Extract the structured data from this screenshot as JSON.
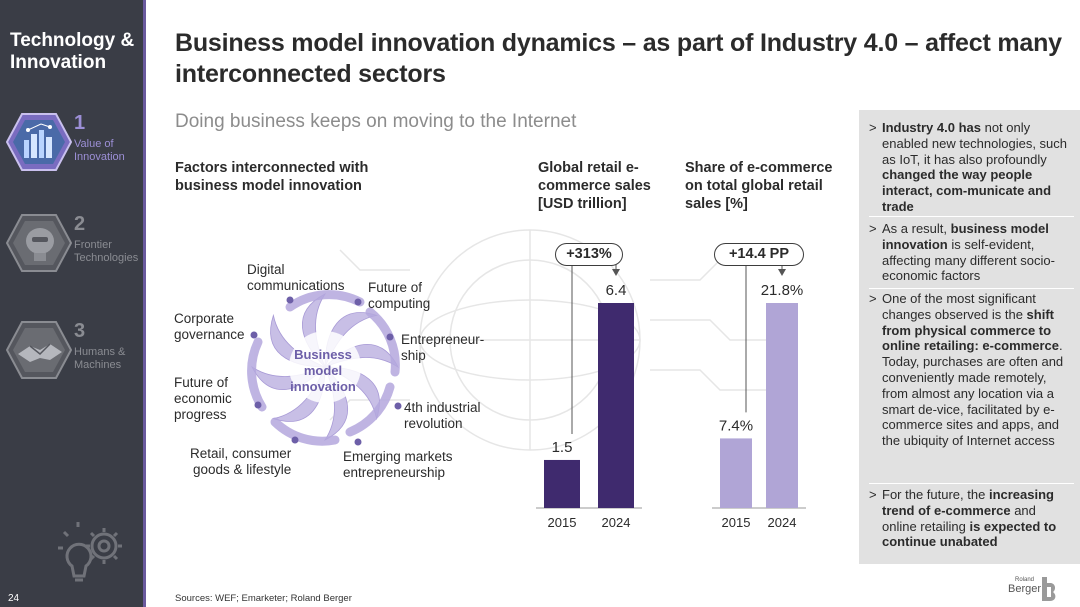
{
  "sidebar": {
    "title": "Technology & Innovation",
    "items": [
      {
        "num": "1",
        "label_line1": "Value of",
        "label_line2": "Innovation",
        "icon": "city-network-icon"
      },
      {
        "num": "2",
        "label_line1": "Frontier",
        "label_line2": "Technologies",
        "icon": "robot-head-icon"
      },
      {
        "num": "3",
        "label_line1": "Humans &",
        "label_line2": "Machines",
        "icon": "handshake-icon"
      }
    ],
    "footer_icon": "lightbulb-gear-icon",
    "page_number": "24"
  },
  "header": {
    "title": "Business model innovation dynamics – as part of Industry 4.0 – affect many interconnected sectors",
    "subtitle": "Doing business keeps on moving to the Internet"
  },
  "factors": {
    "heading": "Factors interconnected with business model innovation",
    "center_line1": "Business",
    "center_line2": "model",
    "center_line3": "innovation",
    "items": [
      "Digital\ncommunications",
      "Future of\ncomputing",
      "Entrepreneur-\nship",
      "4th industrial\nrevolution",
      "Emerging markets\nentrepreneurship",
      "Retail, consumer\ngoods & lifestyle",
      "Future of\neconomic\nprogress",
      "Corporate\ngovernance"
    ]
  },
  "sales_chart": {
    "heading_line1": "Global retail e-",
    "heading_line2": "commerce sales",
    "heading_line3": "[USD trillion]",
    "change": "+313%",
    "bar_labels": [
      "1.5",
      "6.4"
    ]
  },
  "share_chart": {
    "heading_line1": "Share of e-commerce",
    "heading_line2": "on total global retail",
    "heading_line3": "sales [%]",
    "change": "+14.4 PP",
    "bar_labels": [
      "7.4%",
      "21.8%"
    ]
  },
  "chart_data": [
    {
      "type": "bar",
      "categories": [
        "2015",
        "2024"
      ],
      "values": [
        1.5,
        6.4
      ],
      "title": "Global retail e-commerce sales [USD trillion]",
      "colors": [
        "#3f2a6e",
        "#3f2a6e"
      ],
      "annotation": "+313%"
    },
    {
      "type": "bar",
      "categories": [
        "2015",
        "2024"
      ],
      "values": [
        7.4,
        21.8
      ],
      "title": "Share of e-commerce on total global retail sales [%]",
      "colors": [
        "#b0a5d6",
        "#b0a5d6"
      ],
      "annotation": "+14.4 PP"
    }
  ],
  "panel": {
    "bullets": [
      "<b>Industry 4.0 has</b> not only enabled new technologies, such as IoT, it has also profoundly <b>changed the way people interact, com-municate and trade</b>",
      "As a result, <b>business model innovation</b> is self-evident, affecting many different socio-economic factors",
      "One of the most significant changes observed is the <b>shift from physical commerce to online retailing: e-commerce</b>. Today, purchases are often and conveniently made remotely, from almost any location via a smart de-vice, facilitated by e-commerce sites and apps, and the ubiquity of Internet access",
      "For the future, the <b>increasing trend of e-commerce</b> and online retailing <b>is expected to continue unabated</b>"
    ],
    "marker": ">"
  },
  "footer": {
    "sources": "Sources: WEF; Emarketer; Roland Berger",
    "logo_small": "Roland",
    "logo_big": "Berger"
  },
  "colors": {
    "sidebar_bg": "#3a3d46",
    "accent": "#6a5a9e",
    "dark_bar": "#3f2a6e",
    "light_bar": "#b0a5d6",
    "panel_bg": "#e1e1e1"
  }
}
